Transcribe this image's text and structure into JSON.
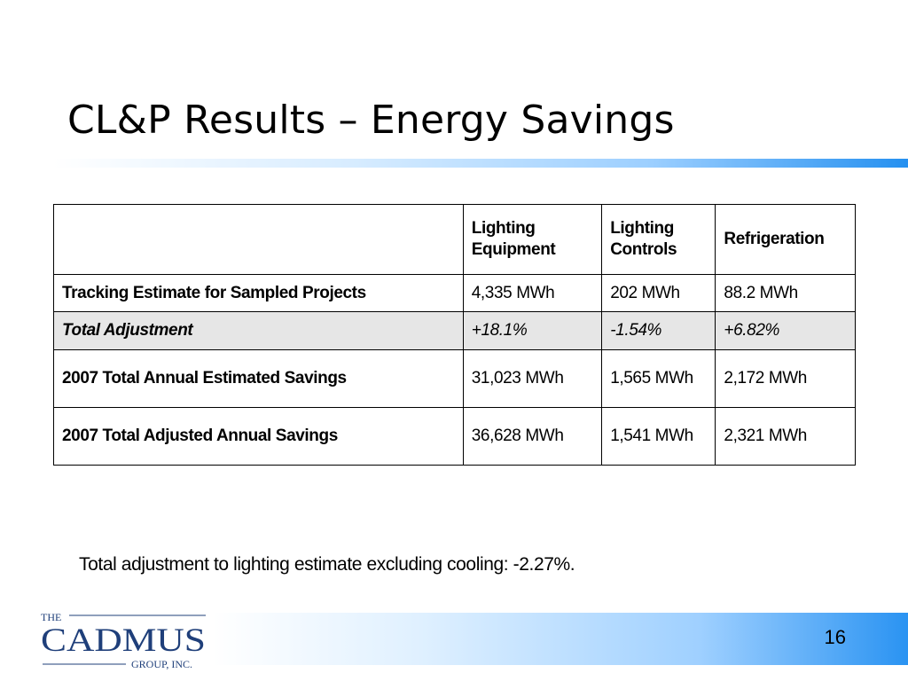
{
  "slide": {
    "title": "CL&P Results – Energy Savings",
    "page_number": "16"
  },
  "table": {
    "headers": [
      "",
      "Lighting Equipment",
      "Lighting Controls",
      "Refrigeration"
    ],
    "rows": [
      {
        "label": "Tracking Estimate for Sampled Projects",
        "values": [
          "4,335 MWh",
          "202 MWh",
          "88.2 MWh"
        ]
      },
      {
        "label": "Total Adjustment",
        "values": [
          "+18.1%",
          "-1.54%",
          "+6.82%"
        ]
      },
      {
        "label": "2007 Total Annual Estimated Savings",
        "values": [
          "31,023 MWh",
          "1,565 MWh",
          "2,172 MWh"
        ]
      },
      {
        "label": "2007 Total Adjusted Annual Savings",
        "values": [
          "36,628 MWh",
          "1,541 MWh",
          "2,321 MWh"
        ]
      }
    ]
  },
  "note": "Total adjustment to lighting estimate excluding cooling: -2.27%.",
  "logo": {
    "line_top": "THE",
    "line_main": "CADMUS",
    "line_bottom": "GROUP, INC."
  },
  "colors": {
    "accent_blue": "#2590f0",
    "logo_blue": "#1f3f7a",
    "adjustment_row_bg": "#e6e6e6"
  }
}
